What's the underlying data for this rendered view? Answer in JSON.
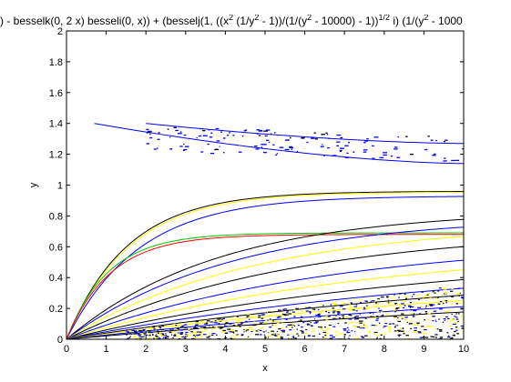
{
  "chart_data": {
    "type": "line",
    "title_parts": [
      {
        "text": ") - besselk(0, 2 x) besseli(0, x)) + (besselj(1, ((x",
        "sup": false
      },
      {
        "text": "2",
        "sup": true
      },
      {
        "text": " (1/y",
        "sup": false
      },
      {
        "text": "2",
        "sup": true
      },
      {
        "text": " - 1))/(1/(y",
        "sup": false
      },
      {
        "text": "2",
        "sup": true
      },
      {
        "text": " - 10000) - 1))",
        "sup": false
      },
      {
        "text": "1/2",
        "sup": true
      },
      {
        "text": " i) (1/(y",
        "sup": false
      },
      {
        "text": "2",
        "sup": true
      },
      {
        "text": " - 1000",
        "sup": false
      }
    ],
    "xlabel": "x",
    "ylabel": "y",
    "xlim": [
      0,
      10
    ],
    "ylim": [
      0,
      2
    ],
    "xticks": [
      "0",
      "1",
      "2",
      "3",
      "4",
      "5",
      "6",
      "7",
      "8",
      "9",
      "10"
    ],
    "yticks": [
      "0",
      "0.2",
      "0.4",
      "0.6",
      "0.8",
      "1",
      "1.2",
      "1.4",
      "1.6",
      "1.8",
      "2"
    ],
    "grid": false,
    "series_colors": [
      "#0000ff",
      "#000000",
      "#ffff00",
      "#00c000",
      "#ff0000"
    ],
    "curves": [
      {
        "color": "#000000",
        "A": 0.96,
        "k": 0.65
      },
      {
        "color": "#ffff00",
        "A": 0.955,
        "k": 0.63
      },
      {
        "color": "#0000ff",
        "A": 0.93,
        "k": 0.55
      },
      {
        "color": "#00c000",
        "A": 0.69,
        "k": 0.95
      },
      {
        "color": "#ff0000",
        "A": 0.68,
        "k": 0.9
      },
      {
        "color": "#000000",
        "A": 0.84,
        "k": 0.26
      },
      {
        "color": "#0000ff",
        "A": 0.8,
        "k": 0.24
      },
      {
        "color": "#ffff00",
        "A": 0.76,
        "k": 0.21
      },
      {
        "color": "#000000",
        "A": 0.72,
        "k": 0.18
      },
      {
        "color": "#0000ff",
        "A": 0.66,
        "k": 0.15
      },
      {
        "color": "#ffff00",
        "A": 0.62,
        "k": 0.13
      },
      {
        "color": "#000000",
        "A": 0.58,
        "k": 0.11
      },
      {
        "color": "#0000ff",
        "A": 0.54,
        "k": 0.095
      },
      {
        "color": "#000000",
        "A": 0.52,
        "k": 0.08
      },
      {
        "color": "#ffff00",
        "A": 0.5,
        "k": 0.07
      },
      {
        "color": "#0000ff",
        "A": 0.47,
        "k": 0.06
      },
      {
        "color": "#000000",
        "A": 0.45,
        "k": 0.05
      }
    ],
    "upper_curves": [
      {
        "color": "#0000ff",
        "y0": 1.4,
        "x0": 0.7,
        "y10": 1.14
      },
      {
        "color": "#0000ff",
        "y0": 1.4,
        "x0": 2.0,
        "y10": 1.27
      }
    ]
  }
}
